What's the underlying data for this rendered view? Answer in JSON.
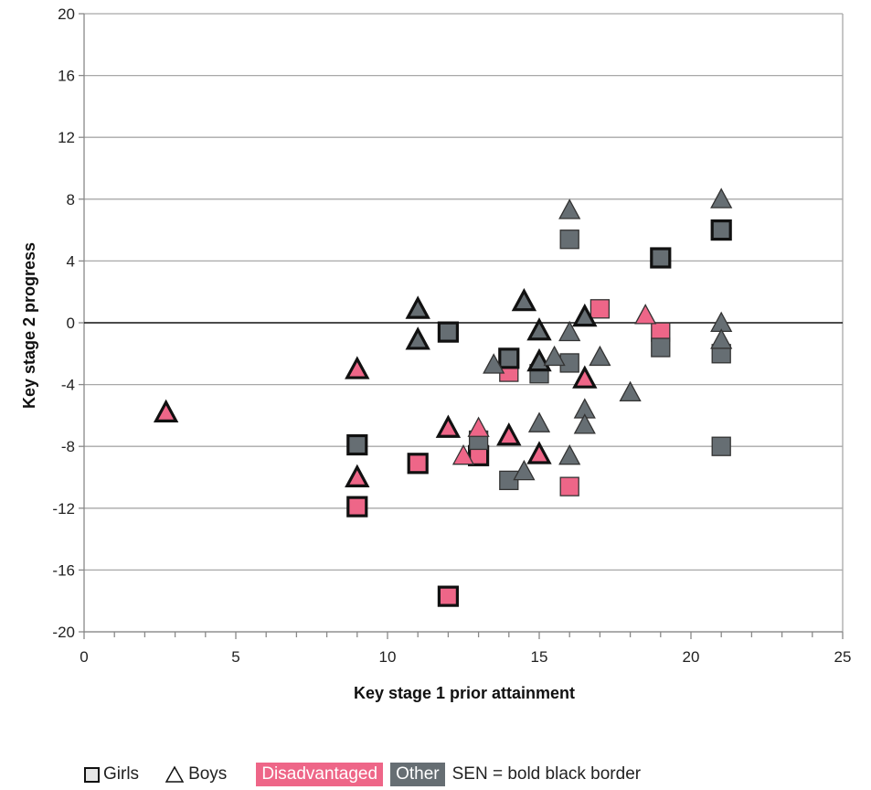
{
  "colors": {
    "disadvantaged": "#ee6688",
    "other": "#666e73",
    "legend_square_fill": "#e6e6e6"
  },
  "legend": {
    "girls": "Girls",
    "boys": "Boys",
    "disadvantaged": "Disadvantaged",
    "other": "Other",
    "sen_note": "SEN = bold black border"
  },
  "chart_data": {
    "type": "scatter",
    "xlabel": "Key stage 1 prior attainment",
    "ylabel": "Key stage 2 progress",
    "xlim": [
      0,
      25
    ],
    "ylim": [
      -20,
      20
    ],
    "xticks": [
      0,
      5,
      10,
      15,
      20,
      25
    ],
    "yticks": [
      -20,
      -16,
      -12,
      -8,
      -4,
      0,
      4,
      8,
      12,
      16,
      20
    ],
    "grid": "horizontal",
    "legend_position": "bottom",
    "series": [
      {
        "name": "Girls",
        "marker": "square",
        "points": [
          {
            "x": 9,
            "y": -7.9,
            "group": "Other",
            "sen": true
          },
          {
            "x": 9,
            "y": -11.9,
            "group": "Disadvantaged",
            "sen": true
          },
          {
            "x": 11,
            "y": -9.1,
            "group": "Disadvantaged",
            "sen": true
          },
          {
            "x": 12,
            "y": -0.6,
            "group": "Other",
            "sen": true
          },
          {
            "x": 12,
            "y": -17.7,
            "group": "Disadvantaged",
            "sen": true
          },
          {
            "x": 13,
            "y": -8.6,
            "group": "Disadvantaged",
            "sen": true
          },
          {
            "x": 13,
            "y": -7.6,
            "group": "Other",
            "sen": false
          },
          {
            "x": 14,
            "y": -3.2,
            "group": "Disadvantaged",
            "sen": false
          },
          {
            "x": 14,
            "y": -2.3,
            "group": "Other",
            "sen": true
          },
          {
            "x": 14,
            "y": -10.2,
            "group": "Other",
            "sen": false
          },
          {
            "x": 15,
            "y": -3.3,
            "group": "Other",
            "sen": false
          },
          {
            "x": 16,
            "y": 5.4,
            "group": "Other",
            "sen": false
          },
          {
            "x": 16,
            "y": -2.6,
            "group": "Other",
            "sen": false
          },
          {
            "x": 16,
            "y": -10.6,
            "group": "Disadvantaged",
            "sen": false
          },
          {
            "x": 17,
            "y": 0.9,
            "group": "Disadvantaged",
            "sen": false
          },
          {
            "x": 19,
            "y": 4.2,
            "group": "Other",
            "sen": true
          },
          {
            "x": 19,
            "y": -0.6,
            "group": "Disadvantaged",
            "sen": false
          },
          {
            "x": 19,
            "y": -1.6,
            "group": "Other",
            "sen": false
          },
          {
            "x": 21,
            "y": 6.0,
            "group": "Other",
            "sen": true
          },
          {
            "x": 21,
            "y": -2.0,
            "group": "Other",
            "sen": false
          },
          {
            "x": 21,
            "y": -8.0,
            "group": "Other",
            "sen": false
          }
        ]
      },
      {
        "name": "Boys",
        "marker": "triangle",
        "points": [
          {
            "x": 2.7,
            "y": -5.8,
            "group": "Disadvantaged",
            "sen": true
          },
          {
            "x": 9,
            "y": -3.0,
            "group": "Disadvantaged",
            "sen": true
          },
          {
            "x": 9,
            "y": -10.0,
            "group": "Disadvantaged",
            "sen": true
          },
          {
            "x": 11,
            "y": 0.9,
            "group": "Other",
            "sen": true
          },
          {
            "x": 11,
            "y": -1.1,
            "group": "Other",
            "sen": true
          },
          {
            "x": 12,
            "y": -6.8,
            "group": "Disadvantaged",
            "sen": true
          },
          {
            "x": 12.5,
            "y": -8.6,
            "group": "Disadvantaged",
            "sen": false
          },
          {
            "x": 13,
            "y": -6.8,
            "group": "Disadvantaged",
            "sen": false
          },
          {
            "x": 13.5,
            "y": -2.7,
            "group": "Other",
            "sen": false
          },
          {
            "x": 14,
            "y": -7.3,
            "group": "Disadvantaged",
            "sen": true
          },
          {
            "x": 14.5,
            "y": 1.4,
            "group": "Other",
            "sen": true
          },
          {
            "x": 14.5,
            "y": -9.6,
            "group": "Other",
            "sen": false
          },
          {
            "x": 15,
            "y": -0.5,
            "group": "Other",
            "sen": true
          },
          {
            "x": 15,
            "y": -2.5,
            "group": "Other",
            "sen": true
          },
          {
            "x": 15,
            "y": -6.5,
            "group": "Other",
            "sen": false
          },
          {
            "x": 15,
            "y": -8.5,
            "group": "Disadvantaged",
            "sen": true
          },
          {
            "x": 15.5,
            "y": -2.2,
            "group": "Other",
            "sen": false
          },
          {
            "x": 16,
            "y": 7.3,
            "group": "Other",
            "sen": false
          },
          {
            "x": 16,
            "y": -0.6,
            "group": "Other",
            "sen": false
          },
          {
            "x": 16,
            "y": -8.6,
            "group": "Other",
            "sen": false
          },
          {
            "x": 16.5,
            "y": 0.4,
            "group": "Other",
            "sen": true
          },
          {
            "x": 16.5,
            "y": -3.6,
            "group": "Disadvantaged",
            "sen": true
          },
          {
            "x": 16.5,
            "y": -5.6,
            "group": "Other",
            "sen": false
          },
          {
            "x": 16.5,
            "y": -6.6,
            "group": "Other",
            "sen": false
          },
          {
            "x": 17,
            "y": -2.2,
            "group": "Other",
            "sen": false
          },
          {
            "x": 18,
            "y": -4.5,
            "group": "Other",
            "sen": false
          },
          {
            "x": 18.5,
            "y": 0.5,
            "group": "Disadvantaged",
            "sen": false
          },
          {
            "x": 21,
            "y": 8.0,
            "group": "Other",
            "sen": false
          },
          {
            "x": 21,
            "y": 0.0,
            "group": "Other",
            "sen": false
          },
          {
            "x": 21,
            "y": -1.1,
            "group": "Other",
            "sen": false
          }
        ]
      }
    ]
  }
}
